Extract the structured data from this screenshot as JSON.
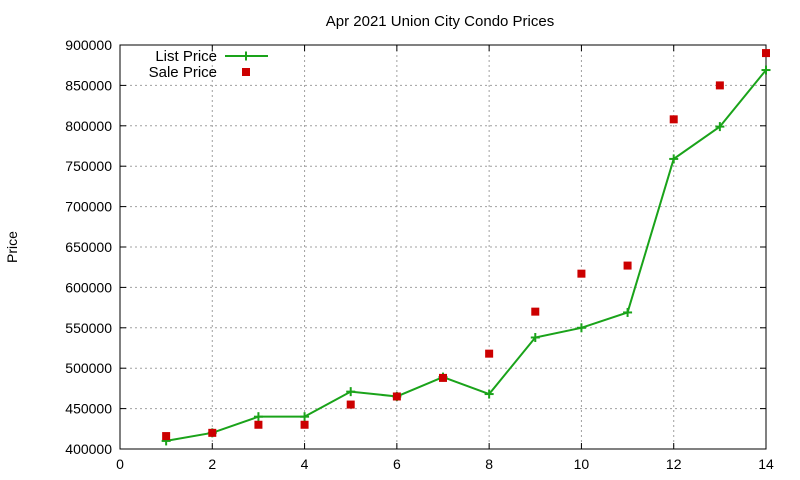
{
  "chart_data": {
    "type": "line",
    "title": "Apr 2021 Union City Condo Prices",
    "xlabel": "",
    "ylabel": "Price",
    "xlim": [
      0,
      14
    ],
    "ylim": [
      400000,
      900000
    ],
    "xticks": [
      0,
      2,
      4,
      6,
      8,
      10,
      12,
      14
    ],
    "yticks": [
      400000,
      450000,
      500000,
      550000,
      600000,
      650000,
      700000,
      750000,
      800000,
      850000,
      900000
    ],
    "grid": true,
    "legend_position": "top-left",
    "series": [
      {
        "name": "List Price",
        "style": "line-plus",
        "color": "#1aa31a",
        "x": [
          1,
          2,
          3,
          4,
          5,
          6,
          7,
          8,
          9,
          10,
          11,
          12,
          13,
          14
        ],
        "y": [
          410000,
          420000,
          440000,
          440000,
          471000,
          465000,
          489000,
          468000,
          538000,
          550000,
          569000,
          759000,
          799000,
          869000
        ]
      },
      {
        "name": "Sale Price",
        "style": "square-points",
        "color": "#cc0000",
        "x": [
          1,
          2,
          3,
          4,
          5,
          6,
          7,
          8,
          9,
          10,
          11,
          12,
          13,
          14
        ],
        "y": [
          416000,
          420000,
          430000,
          430000,
          455000,
          465000,
          488000,
          518000,
          570000,
          617000,
          627000,
          808000,
          850000,
          890000
        ]
      }
    ]
  }
}
